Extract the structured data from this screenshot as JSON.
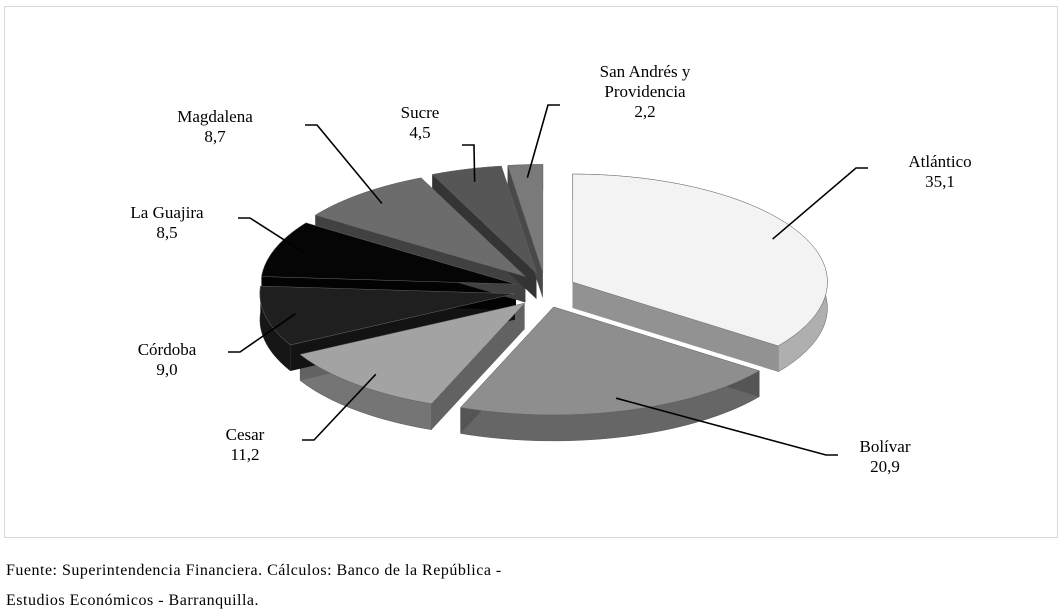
{
  "chart_data": {
    "type": "pie",
    "categories": [
      "Atlántico",
      "Bolívar",
      "Cesar",
      "Córdoba",
      "La Guajira",
      "Magdalena",
      "Sucre",
      "San Andrés y Providencia"
    ],
    "values": [
      35.1,
      20.9,
      11.2,
      9.0,
      8.5,
      8.7,
      4.5,
      2.2
    ],
    "value_labels": [
      "35,1",
      "20,9",
      "11,2",
      "9,0",
      "8,5",
      "8,7",
      "4,5",
      "2,2"
    ],
    "colors": [
      "#f3f3f3",
      "#8e8e8e",
      "#a3a3a3",
      "#1f1f1f",
      "#050505",
      "#6c6c6c",
      "#565656",
      "#7a7a7a"
    ],
    "source": [
      "Fuente: Superintendencia Financiera. Cálculos: Banco de la República -",
      "Estudios Económicos - Barranquilla."
    ]
  }
}
